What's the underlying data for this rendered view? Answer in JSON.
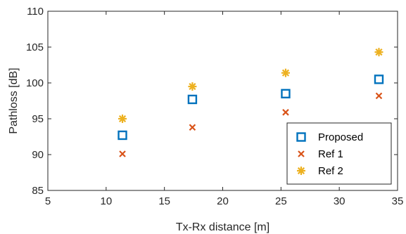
{
  "chart_data": {
    "type": "scatter",
    "title": "",
    "xlabel": "Tx-Rx distance [m]",
    "ylabel": "Pathloss [dB]",
    "xlim": [
      5,
      35
    ],
    "ylim": [
      85,
      110
    ],
    "xticks": [
      "5",
      "10",
      "15",
      "20",
      "25",
      "30",
      "35"
    ],
    "yticks": [
      "85",
      "90",
      "95",
      "100",
      "105",
      "110"
    ],
    "grid": false,
    "legend_position": "bottom-right",
    "series": [
      {
        "name": "Proposed",
        "marker": "square",
        "color": "#0072BD",
        "x": [
          11.4,
          17.4,
          25.4,
          33.4
        ],
        "y": [
          92.7,
          97.7,
          98.5,
          100.5
        ]
      },
      {
        "name": "Ref 1",
        "marker": "x",
        "color": "#D95319",
        "x": [
          11.4,
          17.4,
          25.4,
          33.4
        ],
        "y": [
          90.1,
          93.8,
          95.9,
          98.2
        ]
      },
      {
        "name": "Ref 2",
        "marker": "asterisk",
        "color": "#EDB120",
        "x": [
          11.4,
          17.4,
          25.4,
          33.4
        ],
        "y": [
          95.0,
          99.5,
          101.4,
          104.3
        ]
      }
    ]
  }
}
